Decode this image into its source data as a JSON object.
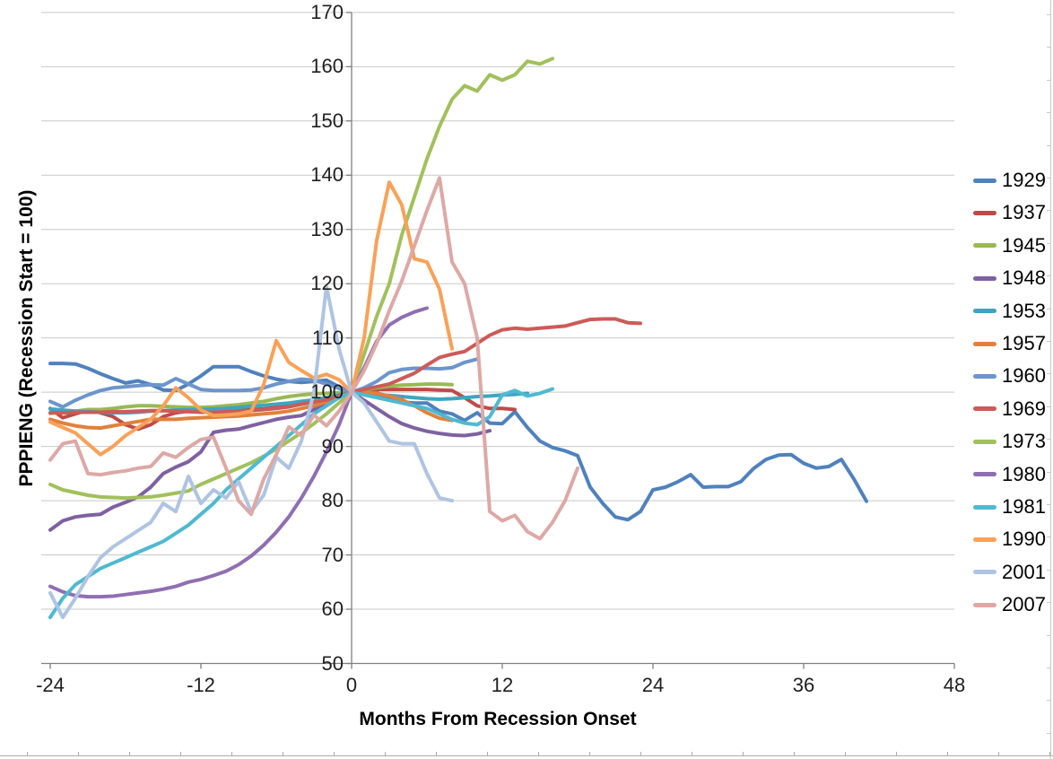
{
  "chart_data": {
    "type": "line",
    "title": "",
    "xlabel": "Months From Recession Onset",
    "ylabel": "PPPIENG (Recession Start = 100)",
    "x_ticks": [
      -24,
      -12,
      0,
      12,
      24,
      36,
      48
    ],
    "y_ticks": [
      50,
      60,
      70,
      80,
      90,
      100,
      110,
      120,
      130,
      140,
      150,
      160,
      170
    ],
    "xlim": [
      -24,
      48
    ],
    "ylim": [
      50,
      170
    ],
    "grid": "horizontal",
    "legend_position": "right",
    "axis_color": "#808080",
    "gridline_color": "#c9c9c9",
    "x_start_month": -24,
    "series": [
      {
        "name": "1929",
        "color": "#4F81BD",
        "start_month": -24,
        "values": [
          105.3,
          105.3,
          105.2,
          104.4,
          103.4,
          102.5,
          101.7,
          102.1,
          101.4,
          100.4,
          100.3,
          101.5,
          103,
          104.7,
          104.7,
          104.7,
          103.8,
          103,
          102.4,
          102,
          101.8,
          102,
          102.2,
          101,
          100,
          100.3,
          100,
          98.6,
          98.2,
          98,
          98,
          96.5,
          96,
          94.8,
          96.2,
          94.3,
          94.2,
          96.4,
          93.5,
          91,
          89.8,
          89.2,
          88.3,
          82.5,
          79.5,
          77,
          76.5,
          78,
          82,
          82.5,
          83.5,
          84.8,
          82.5,
          82.6,
          82.6,
          83.5,
          85.9,
          87.6,
          88.4,
          88.5,
          86.9,
          86,
          86.3,
          87.6,
          84,
          79.9
        ]
      },
      {
        "name": "1937",
        "color": "#BE4B48",
        "start_month": -24,
        "values": [
          97,
          95.3,
          96,
          96.7,
          96.2,
          95.5,
          94,
          93.2,
          94,
          95.5,
          96.2,
          96.5,
          96.5,
          96.6,
          96.7,
          96.8,
          96.8,
          96.9,
          97.2,
          97.5,
          97.8,
          98.2,
          98.6,
          99.2,
          100,
          100.4,
          100.5,
          100.5,
          100.5,
          100.5,
          100.5,
          100.4,
          100.3,
          99,
          97.5,
          97,
          97,
          96.8
        ]
      },
      {
        "name": "1945",
        "color": "#98B954",
        "start_month": -24,
        "values": [
          96.1,
          96.3,
          96.5,
          96.8,
          96.8,
          97,
          97.3,
          97.5,
          97.5,
          97.4,
          97.3,
          97.2,
          97.2,
          97.3,
          97.5,
          97.7,
          98,
          98.3,
          98.8,
          99.2,
          99.5,
          99.7,
          99.8,
          99.9,
          100,
          100.4,
          100.8,
          101.1,
          101.3,
          101.4,
          101.5,
          101.5,
          101.4
        ]
      },
      {
        "name": "1948",
        "color": "#7E61A1",
        "start_month": -24,
        "values": [
          74.6,
          76.3,
          77,
          77.3,
          77.5,
          78.8,
          79.7,
          80.7,
          82.5,
          85,
          86.2,
          87.2,
          89,
          92.6,
          93,
          93.2,
          93.8,
          94.4,
          95,
          95.4,
          95.7,
          96.8,
          97.8,
          99,
          100,
          98.5,
          97,
          95.5,
          94.2,
          93.4,
          92.8,
          92.4,
          92.1,
          92,
          92.3,
          92.9
        ]
      },
      {
        "name": "1953",
        "color": "#3EA5C0",
        "start_month": -24,
        "values": [
          96.9,
          96.7,
          96.5,
          96.4,
          96.3,
          96.2,
          96.2,
          96.3,
          96.5,
          96.6,
          96.7,
          96.8,
          96.8,
          96.9,
          97,
          97.2,
          97.4,
          97.6,
          97.8,
          98,
          98.3,
          98.6,
          99,
          99.5,
          100,
          99.7,
          99.5,
          99.4,
          99.2,
          99,
          98.8,
          98.7,
          98.8,
          99,
          99.2,
          99.3,
          99.5,
          99.6,
          99.8
        ]
      },
      {
        "name": "1957",
        "color": "#E2803B",
        "start_month": -24,
        "values": [
          95,
          94.3,
          93.8,
          93.5,
          93.4,
          93.8,
          94.2,
          94.6,
          95,
          95,
          95,
          95.2,
          95.3,
          95.4,
          95.5,
          95.6,
          95.8,
          96,
          96.2,
          96.5,
          97,
          97.5,
          98.2,
          99,
          100,
          100,
          99.8,
          99.3,
          98.6,
          97.5,
          96.2,
          95.2,
          94.8
        ]
      },
      {
        "name": "1960",
        "color": "#6D95CB",
        "start_month": -24,
        "values": [
          98.3,
          97.3,
          98.5,
          99.5,
          100.3,
          100.8,
          101,
          101.2,
          101.4,
          101.3,
          102.5,
          101.5,
          100.5,
          100.3,
          100.3,
          100.3,
          100.4,
          100.8,
          101.5,
          102,
          102.4,
          102.2,
          101.5,
          100.7,
          100,
          100.8,
          102,
          103.6,
          104.2,
          104.4,
          104.4,
          104.3,
          104.5,
          105.5,
          106.1
        ]
      },
      {
        "name": "1969",
        "color": "#CC5B58",
        "start_month": -24,
        "values": [
          96.2,
          96.2,
          96.3,
          96.3,
          96.3,
          96.4,
          96.4,
          96.5,
          96.6,
          96.6,
          96.5,
          96.4,
          96.3,
          96.3,
          96.4,
          96.5,
          96.6,
          96.8,
          97,
          97.3,
          97.8,
          98.2,
          98.6,
          99.3,
          100,
          100.5,
          101,
          101.5,
          102.5,
          103.5,
          105,
          106.4,
          107,
          107.5,
          109,
          110.5,
          111.5,
          111.8,
          111.6,
          111.8,
          112,
          112.2,
          112.8,
          113.4,
          113.5,
          113.5,
          112.8,
          112.7
        ]
      },
      {
        "name": "1973",
        "color": "#A2C05B",
        "start_month": -24,
        "values": [
          83,
          82,
          81.5,
          81,
          80.7,
          80.6,
          80.5,
          80.6,
          80.7,
          81,
          81.4,
          81.8,
          83,
          84,
          85,
          86,
          87,
          88.2,
          89.5,
          91,
          92.5,
          94.2,
          96,
          98,
          100,
          107,
          114,
          120,
          129,
          136,
          143,
          149,
          154,
          156.5,
          155.5,
          158.5,
          157.5,
          158.5,
          161,
          160.5,
          161.5
        ]
      },
      {
        "name": "1980",
        "color": "#8F6FB2",
        "start_month": -24,
        "values": [
          64.2,
          63.2,
          62.5,
          62.3,
          62.3,
          62.4,
          62.7,
          63,
          63.3,
          63.7,
          64.2,
          65,
          65.5,
          66.2,
          67,
          68.2,
          69.8,
          71.8,
          74.2,
          77,
          80.5,
          84.5,
          89,
          94,
          100,
          104.5,
          109.4,
          112.4,
          113.8,
          114.8,
          115.5
        ]
      },
      {
        "name": "1981",
        "color": "#4FB9D1",
        "start_month": -24,
        "values": [
          58.5,
          62,
          64.5,
          66,
          67.5,
          68.5,
          69.5,
          70.5,
          71.5,
          72.5,
          74,
          75.5,
          77.5,
          79.5,
          82,
          84,
          86,
          88,
          90,
          92,
          94,
          96,
          97.5,
          99,
          100,
          99.5,
          99,
          98.5,
          98,
          97.5,
          97,
          96,
          95,
          94.3,
          94,
          95.5,
          99.5,
          100.3,
          99.3,
          99.8,
          100.6
        ]
      },
      {
        "name": "1990",
        "color": "#F9A158",
        "start_month": -24,
        "values": [
          94.5,
          93.5,
          92.5,
          90.5,
          88.5,
          90,
          92,
          93.5,
          95,
          97.5,
          100.8,
          99,
          96.7,
          95.7,
          95.8,
          96,
          96.5,
          101.4,
          109.5,
          105.5,
          104,
          102.6,
          103.3,
          102.3,
          100,
          110,
          128,
          138.7,
          134.5,
          124.6,
          124,
          119,
          108
        ]
      },
      {
        "name": "2001",
        "color": "#AFC4E2",
        "start_month": -24,
        "values": [
          63,
          58.5,
          62,
          66,
          69.5,
          71.5,
          73,
          74.5,
          76,
          79.5,
          78,
          84.5,
          79.5,
          82,
          80.5,
          83.5,
          78,
          81,
          88,
          86,
          91,
          100,
          119.5,
          108,
          100,
          98,
          94.5,
          91,
          90.5,
          90.5,
          85,
          80.5,
          80
        ]
      },
      {
        "name": "2007",
        "color": "#DDA8A5",
        "start_month": -24,
        "values": [
          87.5,
          90.5,
          91,
          85,
          84.8,
          85.2,
          85.5,
          86,
          86.3,
          88.8,
          88,
          89.8,
          91.3,
          91.7,
          86,
          80,
          77.5,
          84,
          88.5,
          93.6,
          92,
          95.8,
          93.8,
          96.5,
          100,
          104,
          109,
          115,
          120.5,
          127,
          133.5,
          139.5,
          124,
          120,
          110,
          78,
          76.3,
          77.3,
          74.3,
          73,
          76,
          80,
          86
        ]
      }
    ]
  }
}
